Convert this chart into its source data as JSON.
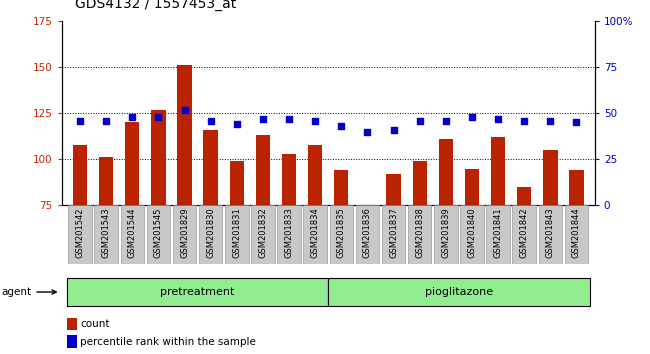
{
  "title": "GDS4132 / 1557453_at",
  "categories": [
    "GSM201542",
    "GSM201543",
    "GSM201544",
    "GSM201545",
    "GSM201829",
    "GSM201830",
    "GSM201831",
    "GSM201832",
    "GSM201833",
    "GSM201834",
    "GSM201835",
    "GSM201836",
    "GSM201837",
    "GSM201838",
    "GSM201839",
    "GSM201840",
    "GSM201841",
    "GSM201842",
    "GSM201843",
    "GSM201844"
  ],
  "bar_values": [
    108,
    101,
    120,
    127,
    151,
    116,
    99,
    113,
    103,
    108,
    94,
    75,
    92,
    99,
    111,
    95,
    112,
    85,
    105,
    94
  ],
  "dot_values": [
    46,
    46,
    48,
    48,
    52,
    46,
    44,
    47,
    47,
    46,
    43,
    40,
    41,
    46,
    46,
    48,
    47,
    46,
    46,
    45
  ],
  "bar_color": "#bb2200",
  "dot_color": "#0000cc",
  "ylim_left": [
    75,
    175
  ],
  "ylim_right": [
    0,
    100
  ],
  "yticks_left": [
    75,
    100,
    125,
    150,
    175
  ],
  "yticks_right": [
    0,
    25,
    50,
    75,
    100
  ],
  "ytick_labels_right": [
    "0",
    "25",
    "50",
    "75",
    "100%"
  ],
  "grid_vals": [
    100,
    125,
    150
  ],
  "pretreatment_indices": [
    0,
    9
  ],
  "pioglitazone_indices": [
    10,
    19
  ],
  "group_label_pretreatment": "pretreatment",
  "group_label_pioglitazone": "pioglitazone",
  "agent_label": "agent",
  "legend_count": "count",
  "legend_percentile": "percentile rank within the sample",
  "group_bg_color": "#90ee90",
  "xtick_bg_color": "#c8c8c8",
  "bar_bottom": 75
}
